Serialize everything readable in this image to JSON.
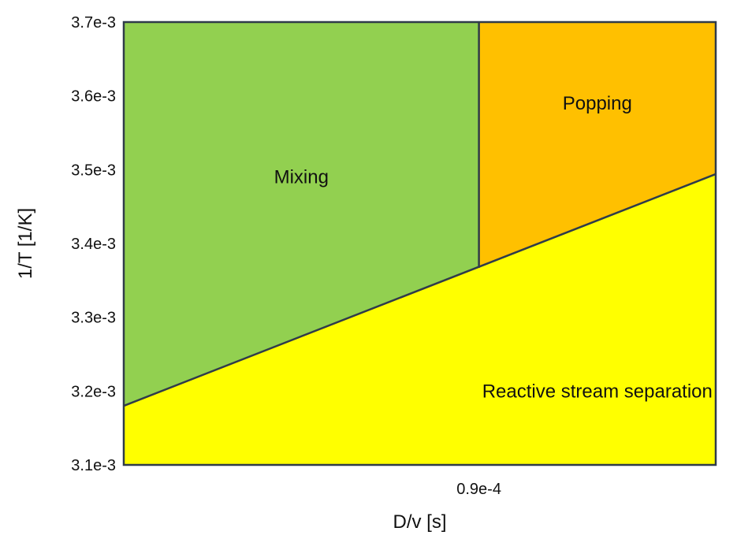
{
  "chart_data": {
    "type": "area",
    "title": "",
    "xlabel": "D/v [s]",
    "ylabel": "1/T [1/K]",
    "ylim": [
      0.0031,
      0.0037
    ],
    "xlim": [
      0.0,
      0.00015
    ],
    "grid": false,
    "legend": "none",
    "x_ticks": [
      {
        "value": 9e-05,
        "label": "0.9e-4"
      }
    ],
    "y_ticks": [
      {
        "value": 0.0031,
        "label": "3.1e-3"
      },
      {
        "value": 0.0032,
        "label": "3.2e-3"
      },
      {
        "value": 0.0033,
        "label": "3.3e-3"
      },
      {
        "value": 0.0034,
        "label": "3.4e-3"
      },
      {
        "value": 0.0035,
        "label": "3.5e-3"
      },
      {
        "value": 0.0036,
        "label": "3.6e-3"
      },
      {
        "value": 0.0037,
        "label": "3.7e-3"
      }
    ],
    "boundaries": {
      "diagonal": {
        "x": [
          0.0,
          0.00015
        ],
        "y": [
          0.00318,
          0.003494
        ]
      },
      "vertical": {
        "x": 9e-05,
        "y": [
          0.003367,
          0.0037
        ]
      }
    },
    "regions": [
      {
        "name": "Mixing",
        "color": "#92d050",
        "polygon": [
          [
            0.0,
            0.00318
          ],
          [
            9e-05,
            0.003367
          ],
          [
            9e-05,
            0.0037
          ],
          [
            0.0,
            0.0037
          ]
        ],
        "label_at": [
          4.5e-05,
          0.00349
        ]
      },
      {
        "name": "Popping",
        "color": "#ffc000",
        "polygon": [
          [
            9e-05,
            0.003367
          ],
          [
            0.00015,
            0.003494
          ],
          [
            0.00015,
            0.0037
          ],
          [
            9e-05,
            0.0037
          ]
        ],
        "label_at": [
          0.00012,
          0.00359
        ]
      },
      {
        "name": "Reactive stream separation",
        "color": "#ffff00",
        "polygon": [
          [
            0.0,
            0.0031
          ],
          [
            0.00015,
            0.0031
          ],
          [
            0.00015,
            0.003494
          ],
          [
            0.0,
            0.00318
          ]
        ],
        "label_at": [
          0.00012,
          0.0032
        ]
      }
    ]
  }
}
